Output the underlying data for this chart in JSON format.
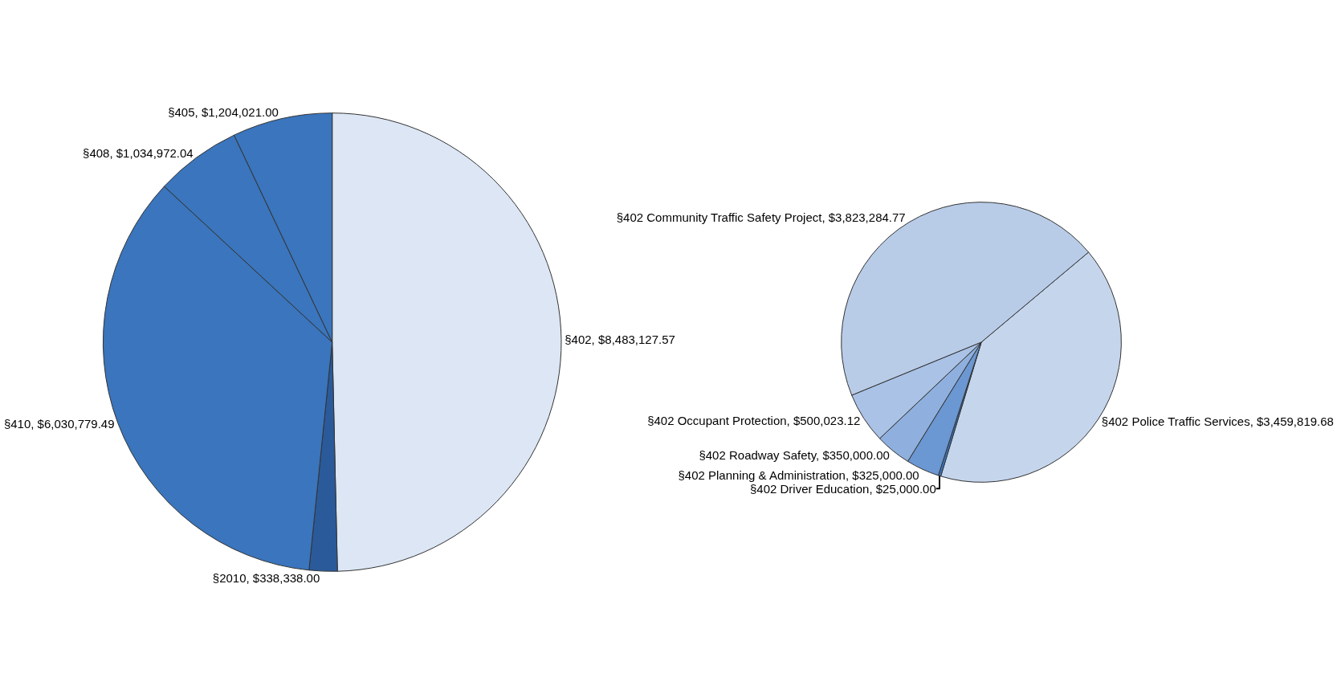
{
  "chart_data": [
    {
      "type": "pie",
      "categories": [
        "§402",
        "§2010",
        "§410",
        "§408",
        "§405"
      ],
      "values": [
        8483127.57,
        338338.0,
        6030779.49,
        1034972.04,
        1204021.0
      ],
      "value_labels": [
        "$8,483,127.57",
        "$338,338.00",
        "$6,030,779.49",
        "$1,034,972.04",
        "$1,204,021.00"
      ],
      "colors": [
        "#dce6f4",
        "#2a5a9a",
        "#3a75bd",
        "#3a75bd",
        "#3a75bd"
      ],
      "legend": false
    },
    {
      "type": "pie",
      "categories": [
        "§402 Police Traffic Services",
        "§402 Driver Education",
        "§402 Planning & Administration",
        "§402 Roadway Safety",
        "§402 Occupant Protection",
        "§402 Community Traffic Safety Project"
      ],
      "values": [
        3459819.68,
        25000.0,
        325000.0,
        350000.0,
        500023.12,
        3823284.77
      ],
      "value_labels": [
        "$3,459,819.68",
        "$25,000.00",
        "$325,000.00",
        "$350,000.00",
        "$500,023.12",
        "$3,823,284.77"
      ],
      "colors": [
        "#c5d5ec",
        "#3a75bd",
        "#6b97d2",
        "#8fb0de",
        "#a9c2e6",
        "#b8cce8"
      ],
      "legend": false
    }
  ]
}
